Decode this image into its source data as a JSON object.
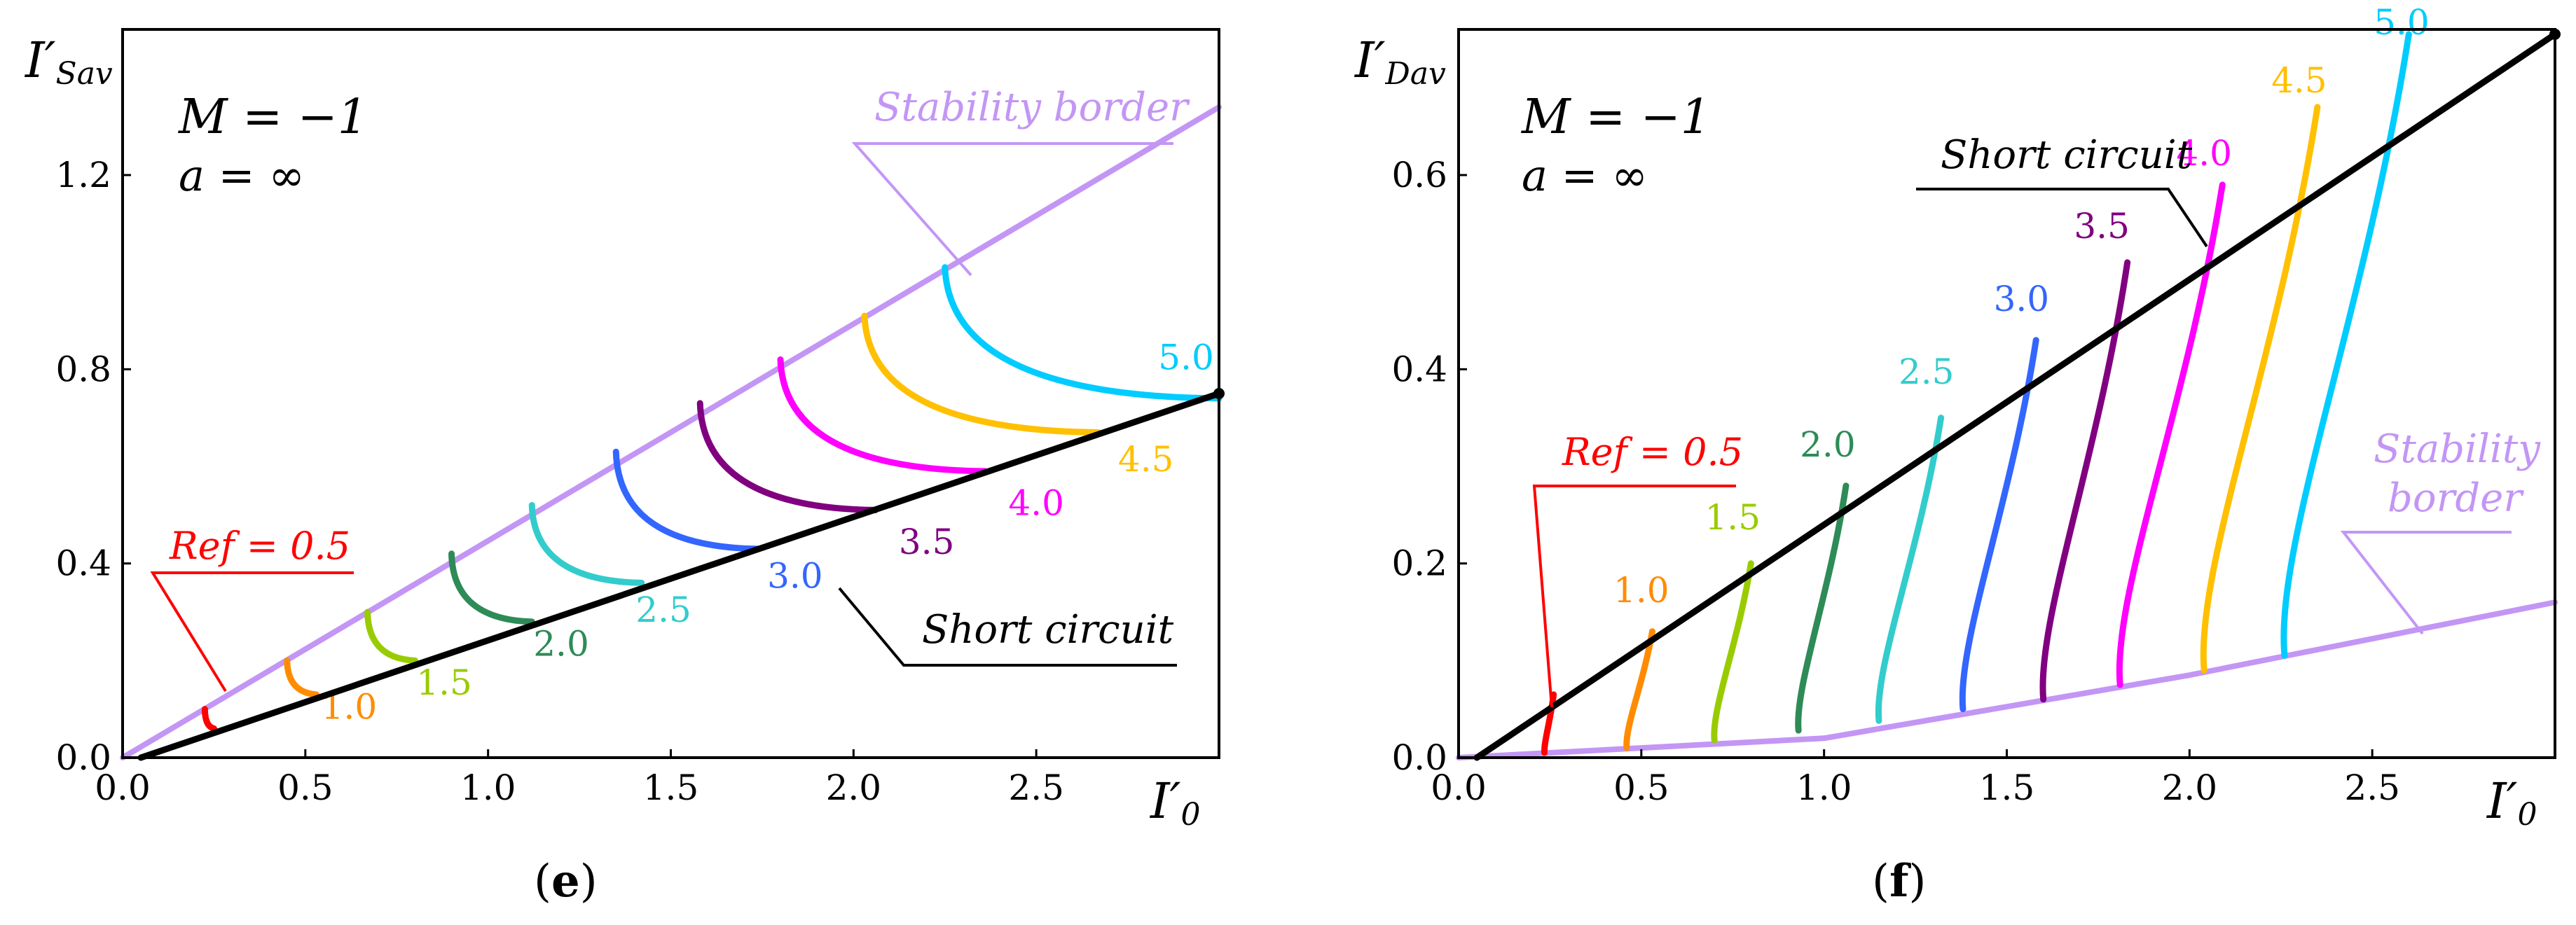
{
  "panels": [
    {
      "id": "e",
      "caption": "e",
      "type": "line",
      "y_title": "I′Sav",
      "y_title_main": "I′",
      "y_title_sub": "Sav",
      "x_title": "I′0",
      "x_title_main": "I′",
      "x_title_sub": "0",
      "params_M": "M = −1",
      "params_a": "a = ∞",
      "xlim": [
        0,
        3.0
      ],
      "ylim": [
        0,
        1.5
      ],
      "x_ticks": [
        0.0,
        0.5,
        1.0,
        1.5,
        2.0,
        2.5
      ],
      "x_tick_labels": [
        "0.0",
        "0.5",
        "1.0",
        "1.5",
        "2.0",
        "2.5"
      ],
      "y_ticks": [
        0.0,
        0.4,
        0.8,
        1.2
      ],
      "y_tick_labels": [
        "0.0",
        "0.4",
        "0.8",
        "1.2"
      ],
      "stability_label": "Stability border",
      "short_label": "Short circuit",
      "ref_label": "Ref = 0.5"
    },
    {
      "id": "f",
      "caption": "f",
      "type": "line",
      "y_title": "I′Dav",
      "y_title_main": "I′",
      "y_title_sub": "Dav",
      "x_title": "I′0",
      "x_title_main": "I′",
      "x_title_sub": "0",
      "params_M": "M = −1",
      "params_a": "a = ∞",
      "xlim": [
        0,
        3.0
      ],
      "ylim": [
        0,
        0.75
      ],
      "x_ticks": [
        0.0,
        0.5,
        1.0,
        1.5,
        2.0,
        2.5
      ],
      "x_tick_labels": [
        "0.0",
        "0.5",
        "1.0",
        "1.5",
        "2.0",
        "2.5"
      ],
      "y_ticks": [
        0.0,
        0.2,
        0.4,
        0.6
      ],
      "y_tick_labels": [
        "0.0",
        "0.2",
        "0.4",
        "0.6"
      ],
      "stability_label_line1": "Stability",
      "stability_label_line2": "border",
      "short_label": "Short circuit",
      "ref_label": "Ref = 0.5"
    }
  ],
  "chart_data": [
    {
      "type": "line",
      "panel": "e",
      "title": "",
      "xlabel": "I′0",
      "ylabel": "I′Sav",
      "xlim": [
        0,
        3.0
      ],
      "ylim": [
        0,
        1.5
      ],
      "stability_border": [
        [
          0,
          0
        ],
        [
          3.0,
          1.34
        ]
      ],
      "short_circuit": [
        [
          0.05,
          0
        ],
        [
          3.0,
          0.75
        ]
      ],
      "series": [
        {
          "name": "Ref = 0.5",
          "ref": 0.5,
          "color": "#ff0000",
          "top": [
            0.225,
            0.1
          ],
          "bottom": [
            0.25,
            0.06
          ],
          "label_pos": [
            0.18,
            0.38
          ]
        },
        {
          "name": "1.0",
          "ref": 1.0,
          "label": "1.0",
          "color": "#ff8c00",
          "top": [
            0.45,
            0.2
          ],
          "bottom": [
            0.53,
            0.13
          ],
          "label_pos": [
            0.62,
            0.08
          ]
        },
        {
          "name": "1.5",
          "ref": 1.5,
          "label": "1.5",
          "color": "#99cc00",
          "top": [
            0.67,
            0.3
          ],
          "bottom": [
            0.8,
            0.2
          ],
          "label_pos": [
            0.88,
            0.13
          ]
        },
        {
          "name": "2.0",
          "ref": 2.0,
          "label": "2.0",
          "color": "#2e8b57",
          "top": [
            0.9,
            0.42
          ],
          "bottom": [
            1.12,
            0.28
          ],
          "label_pos": [
            1.2,
            0.21
          ]
        },
        {
          "name": "2.5",
          "ref": 2.5,
          "label": "2.5",
          "color": "#33cccc",
          "top": [
            1.12,
            0.52
          ],
          "bottom": [
            1.42,
            0.36
          ],
          "label_pos": [
            1.48,
            0.28
          ]
        },
        {
          "name": "3.0",
          "ref": 3.0,
          "label": "3.0",
          "color": "#3366ff",
          "top": [
            1.35,
            0.63
          ],
          "bottom": [
            1.74,
            0.43
          ],
          "label_pos": [
            1.84,
            0.35
          ]
        },
        {
          "name": "3.5",
          "ref": 3.5,
          "label": "3.5",
          "color": "#800080",
          "top": [
            1.58,
            0.73
          ],
          "bottom": [
            2.06,
            0.51
          ],
          "label_pos": [
            2.2,
            0.42
          ]
        },
        {
          "name": "4.0",
          "ref": 4.0,
          "label": "4.0",
          "color": "#ff00ff",
          "top": [
            1.8,
            0.82
          ],
          "bottom": [
            2.36,
            0.59
          ],
          "label_pos": [
            2.5,
            0.5
          ]
        },
        {
          "name": "4.5",
          "ref": 4.5,
          "label": "4.5",
          "color": "#ffc000",
          "top": [
            2.03,
            0.91
          ],
          "bottom": [
            2.67,
            0.67
          ],
          "label_pos": [
            2.8,
            0.59
          ]
        },
        {
          "name": "5.0",
          "ref": 5.0,
          "label": "5.0",
          "color": "#00ccff",
          "top": [
            2.25,
            1.01
          ],
          "bottom": [
            3.0,
            0.74
          ],
          "label_pos": [
            2.91,
            0.8
          ]
        }
      ]
    },
    {
      "type": "line",
      "panel": "f",
      "title": "",
      "xlabel": "I′0",
      "ylabel": "I′Dav",
      "xlim": [
        0,
        3.0
      ],
      "ylim": [
        0,
        0.75
      ],
      "stability_border": [
        [
          0,
          0
        ],
        [
          1.0,
          0.02
        ],
        [
          2.0,
          0.085
        ],
        [
          3.0,
          0.16
        ]
      ],
      "short_circuit": [
        [
          0.05,
          0
        ],
        [
          3.0,
          0.745
        ]
      ],
      "series": [
        {
          "name": "Ref = 0.5",
          "ref": 0.5,
          "color": "#ff0000",
          "top": [
            0.26,
            0.065
          ],
          "bottom": [
            0.235,
            0.005
          ],
          "label_pos": [
            0.6,
            0.315
          ]
        },
        {
          "name": "1.0",
          "ref": 1.0,
          "label": "1.0",
          "color": "#ff8c00",
          "top": [
            0.53,
            0.13
          ],
          "bottom": [
            0.46,
            0.01
          ],
          "label_pos": [
            0.5,
            0.16
          ]
        },
        {
          "name": "1.5",
          "ref": 1.5,
          "label": "1.5",
          "color": "#99cc00",
          "top": [
            0.8,
            0.2
          ],
          "bottom": [
            0.7,
            0.018
          ],
          "label_pos": [
            0.75,
            0.235
          ]
        },
        {
          "name": "2.0",
          "ref": 2.0,
          "label": "2.0",
          "color": "#2e8b57",
          "top": [
            1.06,
            0.28
          ],
          "bottom": [
            0.93,
            0.028
          ],
          "label_pos": [
            1.01,
            0.31
          ]
        },
        {
          "name": "2.5",
          "ref": 2.5,
          "label": "2.5",
          "color": "#33cccc",
          "top": [
            1.32,
            0.35
          ],
          "bottom": [
            1.15,
            0.038
          ],
          "label_pos": [
            1.28,
            0.385
          ]
        },
        {
          "name": "3.0",
          "ref": 3.0,
          "label": "3.0",
          "color": "#3366ff",
          "top": [
            1.58,
            0.43
          ],
          "bottom": [
            1.38,
            0.05
          ],
          "label_pos": [
            1.54,
            0.46
          ]
        },
        {
          "name": "3.5",
          "ref": 3.5,
          "label": "3.5",
          "color": "#800080",
          "top": [
            1.83,
            0.51
          ],
          "bottom": [
            1.6,
            0.06
          ],
          "label_pos": [
            1.76,
            0.535
          ]
        },
        {
          "name": "4.0",
          "ref": 4.0,
          "label": "4.0",
          "color": "#ff00ff",
          "top": [
            2.09,
            0.59
          ],
          "bottom": [
            1.81,
            0.075
          ],
          "label_pos": [
            2.04,
            0.61
          ]
        },
        {
          "name": "4.5",
          "ref": 4.5,
          "label": "4.5",
          "color": "#ffc000",
          "top": [
            2.35,
            0.67
          ],
          "bottom": [
            2.04,
            0.09
          ],
          "label_pos": [
            2.3,
            0.685
          ]
        },
        {
          "name": "5.0",
          "ref": 5.0,
          "label": "5.0",
          "color": "#00ccff",
          "top": [
            2.6,
            0.745
          ],
          "bottom": [
            2.26,
            0.105
          ],
          "label_pos": [
            2.58,
            0.745
          ]
        }
      ]
    }
  ]
}
